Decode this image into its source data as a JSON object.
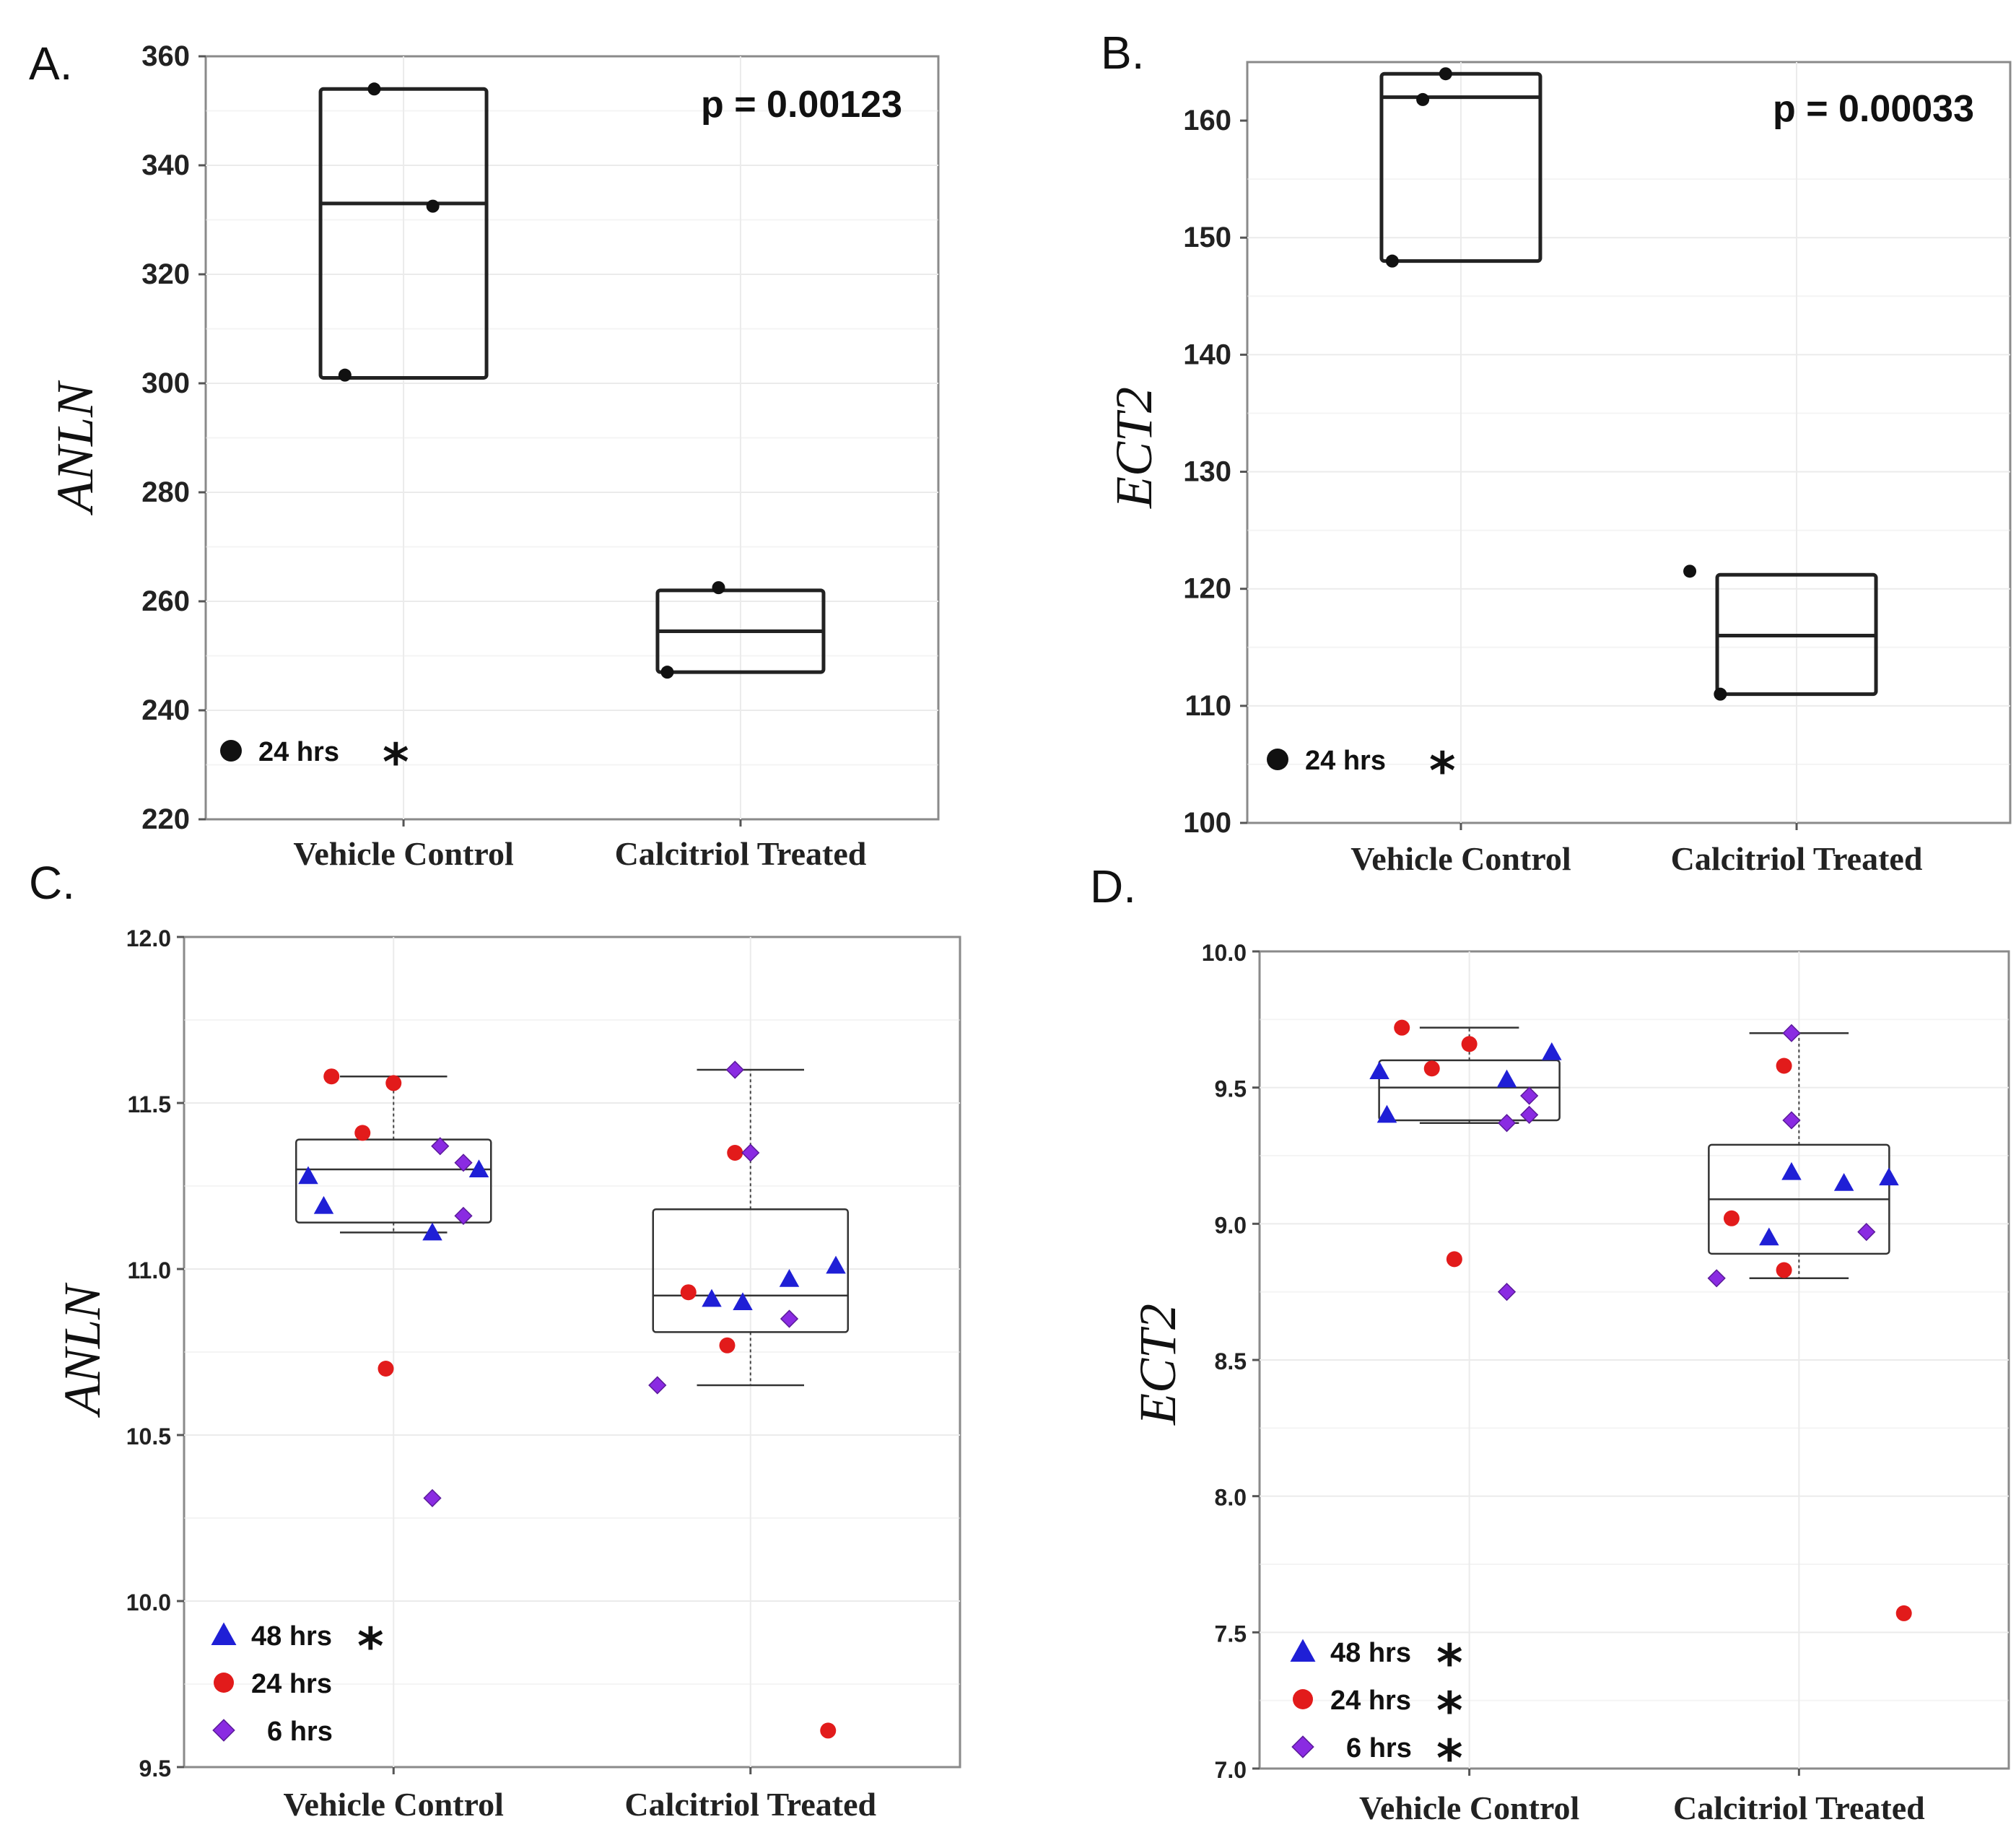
{
  "chart_data": [
    {
      "id": "A",
      "type": "box",
      "panel_label": "A.",
      "ylabel": "ANLN",
      "ylim": [
        220,
        360
      ],
      "yticks": [
        220,
        240,
        260,
        280,
        300,
        320,
        340,
        360
      ],
      "categories": [
        "Vehicle Control",
        "Calcitriol Treated"
      ],
      "p_value": "p = 0.00123",
      "legend": [
        {
          "label": "24 hrs",
          "marker": "circle",
          "color": "#111111",
          "star": "*"
        }
      ],
      "boxes": [
        {
          "q1": 301,
          "median": 333,
          "q3": 354
        },
        {
          "q1": 247,
          "median": 254.5,
          "q3": 262
        }
      ],
      "series": [
        {
          "name": "24 hrs",
          "marker": "circle",
          "color": "#111111",
          "points": [
            {
              "cat": 0,
              "dx": -0.04,
              "y": 354
            },
            {
              "cat": 0,
              "dx": 0.04,
              "y": 332.5
            },
            {
              "cat": 0,
              "dx": -0.08,
              "y": 301.5
            },
            {
              "cat": 1,
              "dx": -0.03,
              "y": 262.5
            },
            {
              "cat": 1,
              "dx": -0.1,
              "y": 247
            }
          ]
        }
      ]
    },
    {
      "id": "B",
      "type": "box",
      "panel_label": "B.",
      "ylabel": "ECT2",
      "ylim": [
        100,
        165
      ],
      "yticks": [
        100,
        110,
        120,
        130,
        140,
        150,
        160
      ],
      "categories": [
        "Vehicle Control",
        "Calcitriol Treated"
      ],
      "p_value": "p = 0.00033",
      "legend": [
        {
          "label": "24 hrs",
          "marker": "circle",
          "color": "#111111",
          "star": "*"
        }
      ],
      "boxes": [
        {
          "q1": 148,
          "median": 162,
          "q3": 164
        },
        {
          "q1": 111,
          "median": 116,
          "q3": 121.2
        }
      ],
      "series": [
        {
          "name": "24 hrs",
          "marker": "circle",
          "color": "#111111",
          "points": [
            {
              "cat": 0,
              "dx": -0.02,
              "y": 164
            },
            {
              "cat": 0,
              "dx": -0.05,
              "y": 161.8
            },
            {
              "cat": 0,
              "dx": -0.09,
              "y": 148
            },
            {
              "cat": 1,
              "dx": -0.14,
              "y": 121.5
            },
            {
              "cat": 1,
              "dx": -0.1,
              "y": 111
            }
          ]
        }
      ]
    },
    {
      "id": "C",
      "type": "box",
      "panel_label": "C.",
      "ylabel": "ANLN",
      "ylim": [
        9.5,
        12.0
      ],
      "yticks": [
        9.5,
        10.0,
        10.5,
        11.0,
        11.5,
        12.0
      ],
      "categories": [
        "Vehicle Control",
        "Calcitriol Treated"
      ],
      "legend": [
        {
          "label": "48 hrs",
          "marker": "triangle",
          "color": "#1f1fd6",
          "star": "*"
        },
        {
          "label": "24 hrs",
          "marker": "circle",
          "color": "#e21b1b",
          "star": ""
        },
        {
          "label": "6 hrs",
          "marker": "diamond",
          "color": "#8a2be2",
          "star": ""
        }
      ],
      "boxes": [
        {
          "whisker_low": 11.11,
          "q1": 11.14,
          "median": 11.3,
          "q3": 11.39,
          "whisker_high": 11.58
        },
        {
          "whisker_low": 10.65,
          "q1": 10.81,
          "median": 10.92,
          "q3": 11.18,
          "whisker_high": 11.6
        }
      ],
      "series": [
        {
          "name": "48 hrs",
          "marker": "triangle",
          "color": "#1f1fd6",
          "points": [
            {
              "cat": 0,
              "dx": -0.11,
              "y": 11.28
            },
            {
              "cat": 0,
              "dx": -0.09,
              "y": 11.19
            },
            {
              "cat": 0,
              "dx": 0.11,
              "y": 11.3
            },
            {
              "cat": 0,
              "dx": 0.05,
              "y": 11.11
            },
            {
              "cat": 1,
              "dx": -0.05,
              "y": 10.91
            },
            {
              "cat": 1,
              "dx": -0.01,
              "y": 10.9
            },
            {
              "cat": 1,
              "dx": 0.05,
              "y": 10.97
            },
            {
              "cat": 1,
              "dx": 0.11,
              "y": 11.01
            }
          ]
        },
        {
          "name": "24 hrs",
          "marker": "circle",
          "color": "#e21b1b",
          "points": [
            {
              "cat": 0,
              "dx": -0.08,
              "y": 11.58
            },
            {
              "cat": 0,
              "dx": 0.0,
              "y": 11.56
            },
            {
              "cat": 0,
              "dx": -0.04,
              "y": 11.41
            },
            {
              "cat": 0,
              "dx": -0.01,
              "y": 10.7
            },
            {
              "cat": 1,
              "dx": -0.08,
              "y": 10.93
            },
            {
              "cat": 1,
              "dx": -0.03,
              "y": 10.77
            },
            {
              "cat": 1,
              "dx": -0.02,
              "y": 11.35
            },
            {
              "cat": 1,
              "dx": 0.1,
              "y": 9.61
            }
          ]
        },
        {
          "name": "6 hrs",
          "marker": "diamond",
          "color": "#8a2be2",
          "points": [
            {
              "cat": 0,
              "dx": 0.06,
              "y": 11.37
            },
            {
              "cat": 0,
              "dx": 0.09,
              "y": 11.32
            },
            {
              "cat": 0,
              "dx": 0.09,
              "y": 11.16
            },
            {
              "cat": 0,
              "dx": 0.05,
              "y": 10.31
            },
            {
              "cat": 1,
              "dx": -0.12,
              "y": 10.65
            },
            {
              "cat": 1,
              "dx": 0.05,
              "y": 10.85
            },
            {
              "cat": 1,
              "dx": -0.02,
              "y": 11.6
            },
            {
              "cat": 1,
              "dx": 0.0,
              "y": 11.35
            }
          ]
        }
      ]
    },
    {
      "id": "D",
      "type": "box",
      "panel_label": "D.",
      "ylabel": "ECT2",
      "ylim": [
        7.0,
        10.0
      ],
      "yticks": [
        7.0,
        7.5,
        8.0,
        8.5,
        9.0,
        9.5,
        10.0
      ],
      "categories": [
        "Vehicle Control",
        "Calcitriol Treated"
      ],
      "legend": [
        {
          "label": "48 hrs",
          "marker": "triangle",
          "color": "#1f1fd6",
          "star": "*"
        },
        {
          "label": "24 hrs",
          "marker": "circle",
          "color": "#e21b1b",
          "star": "*"
        },
        {
          "label": "6 hrs",
          "marker": "diamond",
          "color": "#8a2be2",
          "star": "*"
        }
      ],
      "boxes": [
        {
          "whisker_low": 9.37,
          "q1": 9.38,
          "median": 9.5,
          "q3": 9.6,
          "whisker_high": 9.72
        },
        {
          "whisker_low": 8.8,
          "q1": 8.89,
          "median": 9.09,
          "q3": 9.29,
          "whisker_high": 9.7
        }
      ],
      "series": [
        {
          "name": "48 hrs",
          "marker": "triangle",
          "color": "#1f1fd6",
          "points": [
            {
              "cat": 0,
              "dx": -0.12,
              "y": 9.56
            },
            {
              "cat": 0,
              "dx": -0.11,
              "y": 9.4
            },
            {
              "cat": 0,
              "dx": 0.05,
              "y": 9.53
            },
            {
              "cat": 0,
              "dx": 0.11,
              "y": 9.63
            },
            {
              "cat": 1,
              "dx": -0.04,
              "y": 8.95
            },
            {
              "cat": 1,
              "dx": -0.01,
              "y": 9.19
            },
            {
              "cat": 1,
              "dx": 0.06,
              "y": 9.15
            },
            {
              "cat": 1,
              "dx": 0.12,
              "y": 9.17
            }
          ]
        },
        {
          "name": "24 hrs",
          "marker": "circle",
          "color": "#e21b1b",
          "points": [
            {
              "cat": 0,
              "dx": -0.09,
              "y": 9.72
            },
            {
              "cat": 0,
              "dx": 0.0,
              "y": 9.66
            },
            {
              "cat": 0,
              "dx": -0.05,
              "y": 9.57
            },
            {
              "cat": 0,
              "dx": -0.02,
              "y": 8.87
            },
            {
              "cat": 1,
              "dx": -0.09,
              "y": 9.02
            },
            {
              "cat": 1,
              "dx": -0.02,
              "y": 8.83
            },
            {
              "cat": 1,
              "dx": -0.02,
              "y": 9.58
            },
            {
              "cat": 1,
              "dx": 0.14,
              "y": 7.57
            }
          ]
        },
        {
          "name": "6 hrs",
          "marker": "diamond",
          "color": "#8a2be2",
          "points": [
            {
              "cat": 0,
              "dx": 0.08,
              "y": 9.47
            },
            {
              "cat": 0,
              "dx": 0.08,
              "y": 9.4
            },
            {
              "cat": 0,
              "dx": 0.05,
              "y": 9.37
            },
            {
              "cat": 0,
              "dx": 0.05,
              "y": 8.75
            },
            {
              "cat": 1,
              "dx": -0.11,
              "y": 8.8
            },
            {
              "cat": 1,
              "dx": 0.09,
              "y": 8.97
            },
            {
              "cat": 1,
              "dx": -0.01,
              "y": 9.38
            },
            {
              "cat": 1,
              "dx": -0.01,
              "y": 9.7
            }
          ]
        }
      ]
    }
  ]
}
